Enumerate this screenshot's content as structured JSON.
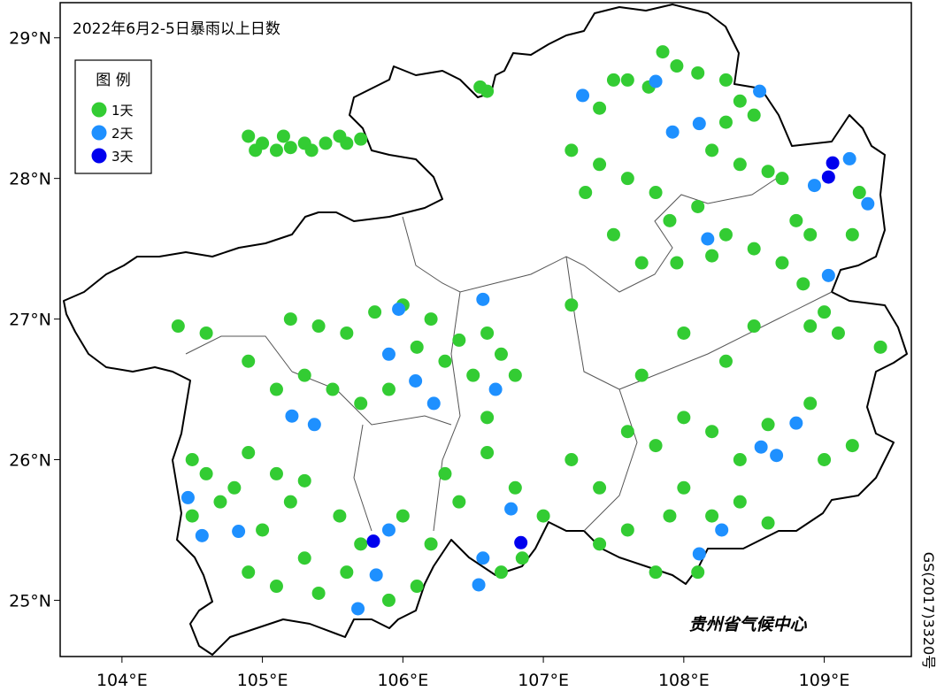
{
  "map": {
    "title": "2022年6月2-5日暴雨以上日数",
    "legend": {
      "title": "图 例",
      "items": [
        {
          "label": "1天",
          "days": 1,
          "color": "#33cc33"
        },
        {
          "label": "2天",
          "days": 2,
          "color": "#1e90ff"
        },
        {
          "label": "3天",
          "days": 3,
          "color": "#0000ee"
        }
      ]
    },
    "xlim": [
      103.56,
      109.62
    ],
    "ylim": [
      24.6,
      29.25
    ],
    "xticks": [
      {
        "value": 104,
        "label": "104°E"
      },
      {
        "value": 105,
        "label": "105°E"
      },
      {
        "value": 106,
        "label": "106°E"
      },
      {
        "value": 107,
        "label": "107°E"
      },
      {
        "value": 108,
        "label": "108°E"
      },
      {
        "value": 109,
        "label": "109°E"
      }
    ],
    "yticks": [
      {
        "value": 25,
        "label": "25°N"
      },
      {
        "value": 26,
        "label": "26°N"
      },
      {
        "value": 27,
        "label": "27°N"
      },
      {
        "value": 28,
        "label": "28°N"
      },
      {
        "value": 29,
        "label": "29°N"
      }
    ],
    "points": [
      [
        104.9,
        28.3,
        1
      ],
      [
        104.95,
        28.2,
        1
      ],
      [
        105.0,
        28.25,
        1
      ],
      [
        105.1,
        28.2,
        1
      ],
      [
        105.2,
        28.22,
        1
      ],
      [
        105.3,
        28.25,
        1
      ],
      [
        105.45,
        28.25,
        1
      ],
      [
        105.55,
        28.3,
        1
      ],
      [
        105.6,
        28.25,
        1
      ],
      [
        105.7,
        28.28,
        1
      ],
      [
        105.35,
        28.2,
        1
      ],
      [
        105.15,
        28.3,
        1
      ],
      [
        106.55,
        28.65,
        1
      ],
      [
        106.6,
        28.62,
        1
      ],
      [
        107.4,
        28.5,
        1
      ],
      [
        107.5,
        28.7,
        1
      ],
      [
        107.6,
        28.7,
        1
      ],
      [
        107.75,
        28.65,
        1
      ],
      [
        107.85,
        28.9,
        1
      ],
      [
        107.95,
        28.8,
        1
      ],
      [
        108.1,
        28.75,
        1
      ],
      [
        108.3,
        28.7,
        1
      ],
      [
        108.4,
        28.55,
        1
      ],
      [
        108.5,
        28.45,
        1
      ],
      [
        108.3,
        28.4,
        1
      ],
      [
        108.2,
        28.2,
        1
      ],
      [
        108.4,
        28.1,
        1
      ],
      [
        108.6,
        28.05,
        1
      ],
      [
        108.7,
        28.0,
        1
      ],
      [
        108.8,
        27.7,
        1
      ],
      [
        108.9,
        27.6,
        1
      ],
      [
        108.7,
        27.4,
        1
      ],
      [
        108.5,
        27.5,
        1
      ],
      [
        108.3,
        27.6,
        1
      ],
      [
        108.1,
        27.8,
        1
      ],
      [
        107.9,
        27.7,
        1
      ],
      [
        107.8,
        27.9,
        1
      ],
      [
        107.6,
        28.0,
        1
      ],
      [
        107.4,
        28.1,
        1
      ],
      [
        107.2,
        28.2,
        1
      ],
      [
        107.3,
        27.9,
        1
      ],
      [
        107.5,
        27.6,
        1
      ],
      [
        107.7,
        27.4,
        1
      ],
      [
        107.95,
        27.4,
        1
      ],
      [
        108.2,
        27.45,
        1
      ],
      [
        108.85,
        27.25,
        1
      ],
      [
        109.2,
        27.6,
        1
      ],
      [
        109.25,
        27.9,
        1
      ],
      [
        105.2,
        27.0,
        1
      ],
      [
        105.4,
        26.95,
        1
      ],
      [
        105.6,
        26.9,
        1
      ],
      [
        105.8,
        27.05,
        1
      ],
      [
        106.0,
        27.1,
        1
      ],
      [
        106.2,
        27.0,
        1
      ],
      [
        106.4,
        26.85,
        1
      ],
      [
        106.6,
        26.9,
        1
      ],
      [
        106.7,
        26.75,
        1
      ],
      [
        106.5,
        26.6,
        1
      ],
      [
        106.3,
        26.7,
        1
      ],
      [
        106.1,
        26.8,
        1
      ],
      [
        105.9,
        26.5,
        1
      ],
      [
        105.7,
        26.4,
        1
      ],
      [
        105.5,
        26.5,
        1
      ],
      [
        105.3,
        26.6,
        1
      ],
      [
        105.1,
        26.5,
        1
      ],
      [
        104.9,
        26.7,
        1
      ],
      [
        104.6,
        26.9,
        1
      ],
      [
        104.4,
        26.95,
        1
      ],
      [
        106.6,
        26.3,
        1
      ],
      [
        106.8,
        26.6,
        1
      ],
      [
        107.2,
        27.1,
        1
      ],
      [
        104.5,
        26.0,
        1
      ],
      [
        104.6,
        25.9,
        1
      ],
      [
        104.7,
        25.7,
        1
      ],
      [
        104.5,
        25.6,
        1
      ],
      [
        104.8,
        25.8,
        1
      ],
      [
        104.9,
        26.05,
        1
      ],
      [
        105.1,
        25.9,
        1
      ],
      [
        105.2,
        25.7,
        1
      ],
      [
        105.0,
        25.5,
        1
      ],
      [
        104.9,
        25.2,
        1
      ],
      [
        105.1,
        25.1,
        1
      ],
      [
        105.3,
        25.3,
        1
      ],
      [
        105.4,
        25.05,
        1
      ],
      [
        105.6,
        25.2,
        1
      ],
      [
        105.7,
        25.4,
        1
      ],
      [
        105.55,
        25.6,
        1
      ],
      [
        105.3,
        25.85,
        1
      ],
      [
        106.0,
        25.6,
        1
      ],
      [
        106.2,
        25.4,
        1
      ],
      [
        106.4,
        25.7,
        1
      ],
      [
        106.3,
        25.9,
        1
      ],
      [
        106.6,
        26.05,
        1
      ],
      [
        106.8,
        25.8,
        1
      ],
      [
        107.0,
        25.6,
        1
      ],
      [
        106.85,
        25.3,
        1
      ],
      [
        106.7,
        25.2,
        1
      ],
      [
        106.1,
        25.1,
        1
      ],
      [
        105.9,
        25.0,
        1
      ],
      [
        107.2,
        26.0,
        1
      ],
      [
        107.4,
        25.8,
        1
      ],
      [
        107.6,
        26.2,
        1
      ],
      [
        107.8,
        26.1,
        1
      ],
      [
        108.0,
        26.3,
        1
      ],
      [
        108.2,
        26.2,
        1
      ],
      [
        108.4,
        26.0,
        1
      ],
      [
        108.6,
        26.25,
        1
      ],
      [
        108.0,
        25.8,
        1
      ],
      [
        108.2,
        25.6,
        1
      ],
      [
        107.9,
        25.6,
        1
      ],
      [
        107.6,
        25.5,
        1
      ],
      [
        107.4,
        25.4,
        1
      ],
      [
        108.4,
        25.7,
        1
      ],
      [
        108.6,
        25.55,
        1
      ],
      [
        108.1,
        25.2,
        1
      ],
      [
        107.8,
        25.2,
        1
      ],
      [
        107.7,
        26.6,
        1
      ],
      [
        108.0,
        26.9,
        1
      ],
      [
        108.3,
        26.7,
        1
      ],
      [
        108.5,
        26.95,
        1
      ],
      [
        108.9,
        26.4,
        1
      ],
      [
        109.0,
        26.0,
        1
      ],
      [
        109.2,
        26.1,
        1
      ],
      [
        109.1,
        26.9,
        1
      ],
      [
        109.4,
        26.8,
        1
      ],
      [
        108.9,
        26.95,
        1
      ],
      [
        109.0,
        27.05,
        1
      ],
      [
        108.54,
        28.62,
        2
      ],
      [
        108.11,
        28.39,
        2
      ],
      [
        107.92,
        28.33,
        2
      ],
      [
        107.8,
        28.69,
        2
      ],
      [
        108.93,
        27.95,
        2
      ],
      [
        109.18,
        28.14,
        2
      ],
      [
        109.31,
        27.82,
        2
      ],
      [
        109.03,
        27.31,
        2
      ],
      [
        105.97,
        27.07,
        2
      ],
      [
        105.9,
        26.75,
        2
      ],
      [
        106.09,
        26.56,
        2
      ],
      [
        106.57,
        27.14,
        2
      ],
      [
        106.66,
        26.5,
        2
      ],
      [
        106.22,
        26.4,
        2
      ],
      [
        105.21,
        26.31,
        2
      ],
      [
        105.37,
        26.25,
        2
      ],
      [
        104.57,
        25.46,
        2
      ],
      [
        104.47,
        25.73,
        2
      ],
      [
        104.83,
        25.49,
        2
      ],
      [
        106.57,
        25.3,
        2
      ],
      [
        106.54,
        25.11,
        2
      ],
      [
        106.77,
        25.65,
        2
      ],
      [
        108.55,
        26.09,
        2
      ],
      [
        108.66,
        26.03,
        2
      ],
      [
        108.11,
        25.33,
        2
      ],
      [
        108.27,
        25.5,
        2
      ],
      [
        105.68,
        24.94,
        2
      ],
      [
        105.81,
        25.18,
        2
      ],
      [
        105.9,
        25.5,
        2
      ],
      [
        108.8,
        26.26,
        2
      ],
      [
        107.28,
        28.59,
        2
      ],
      [
        108.17,
        27.57,
        2
      ],
      [
        109.06,
        28.11,
        3
      ],
      [
        109.03,
        28.01,
        3
      ],
      [
        105.79,
        25.42,
        3
      ],
      [
        106.84,
        25.41,
        3
      ]
    ],
    "credit": "贵州省气候中心",
    "map_number": "GS(2017)3320号"
  }
}
